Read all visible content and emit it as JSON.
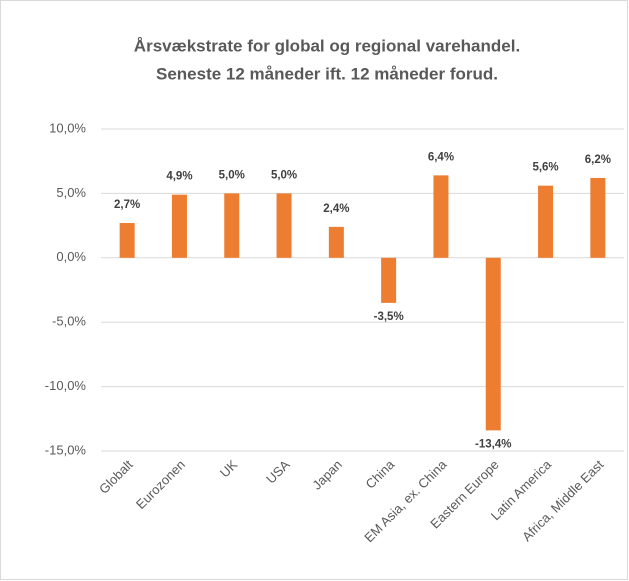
{
  "chart_data": {
    "type": "bar",
    "title": [
      "Årsvækstrate for global og regional varehandel.",
      "Seneste 12 måneder ift. 12 måneder forud."
    ],
    "categories": [
      "Globalt",
      "Eurozonen",
      "UK",
      "USA",
      "Japan",
      "China",
      "EM Asia, ex. China",
      "Eastern Europe",
      "Latin America",
      "Africa, Middle East"
    ],
    "values": [
      2.7,
      4.9,
      5.0,
      5.0,
      2.4,
      -3.5,
      6.4,
      -13.4,
      5.6,
      6.2
    ],
    "value_labels": [
      "2,7%",
      "4,9%",
      "5,0%",
      "5,0%",
      "2,4%",
      "-3,5%",
      "6,4%",
      "-13,4%",
      "5,6%",
      "6,2%"
    ],
    "color": "#ed7d31",
    "ylim": [
      -15,
      10
    ],
    "yticks": [
      {
        "value": -15,
        "label": "-15,0%"
      },
      {
        "value": -10,
        "label": "-10,0%"
      },
      {
        "value": -5,
        "label": "-5,0%"
      },
      {
        "value": 0,
        "label": "0,0%"
      },
      {
        "value": 5,
        "label": "5,0%"
      },
      {
        "value": 10,
        "label": "10,0%"
      }
    ],
    "grid": true
  }
}
